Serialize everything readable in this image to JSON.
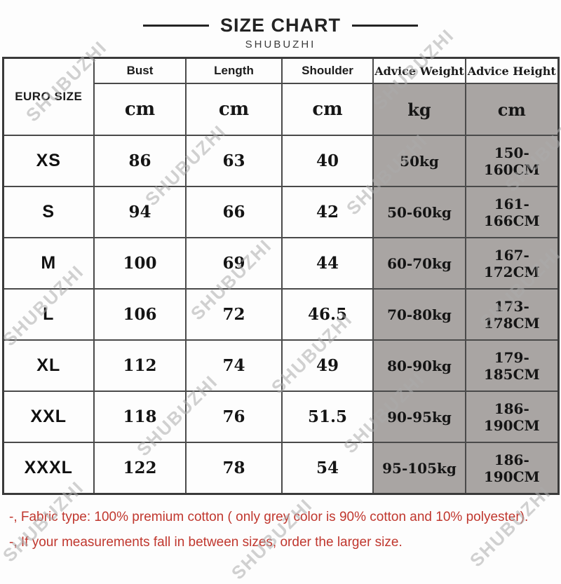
{
  "header": {
    "title": "SIZE CHART",
    "subtitle": "SHUBUZHI"
  },
  "watermark": {
    "text": "SHUBUZHI"
  },
  "chart_data": {
    "type": "table",
    "title": "SIZE CHART",
    "brand": "SHUBUZHI",
    "columns": [
      "EURO SIZE",
      "Bust",
      "Length",
      "Shoulder",
      "Advice Weight",
      "Advice Height"
    ],
    "units_row": [
      "cm",
      "cm",
      "cm",
      "kg",
      "cm"
    ],
    "rows": [
      {
        "size": "XS",
        "bust": "86",
        "length": "63",
        "shoulder": "40",
        "advice_weight": "50kg",
        "advice_height": "150-160CM"
      },
      {
        "size": "S",
        "bust": "94",
        "length": "66",
        "shoulder": "42",
        "advice_weight": "50-60kg",
        "advice_height": "161-166CM"
      },
      {
        "size": "M",
        "bust": "100",
        "length": "69",
        "shoulder": "44",
        "advice_weight": "60-70kg",
        "advice_height": "167-172CM"
      },
      {
        "size": "L",
        "bust": "106",
        "length": "72",
        "shoulder": "46.5",
        "advice_weight": "70-80kg",
        "advice_height": "173-178CM"
      },
      {
        "size": "XL",
        "bust": "112",
        "length": "74",
        "shoulder": "49",
        "advice_weight": "80-90kg",
        "advice_height": "179-185CM"
      },
      {
        "size": "XXL",
        "bust": "118",
        "length": "76",
        "shoulder": "51.5",
        "advice_weight": "90-95kg",
        "advice_height": "186-190CM"
      },
      {
        "size": "XXXL",
        "bust": "122",
        "length": "78",
        "shoulder": "54",
        "advice_weight": "95-105kg",
        "advice_height": "186-190CM"
      }
    ]
  },
  "notes": [
    "-, Fabric type: 100% premium cotton ( only grey color is 90% cotton and 10% polyester).",
    "-, If your measurements fall in between sizes, order the larger size."
  ],
  "colors": {
    "highlight_bg": "#a9a5a3",
    "highlight_text": "#29217f",
    "note_text": "#c0372e",
    "border": "#4a4a4a",
    "watermark": "#acacac"
  }
}
